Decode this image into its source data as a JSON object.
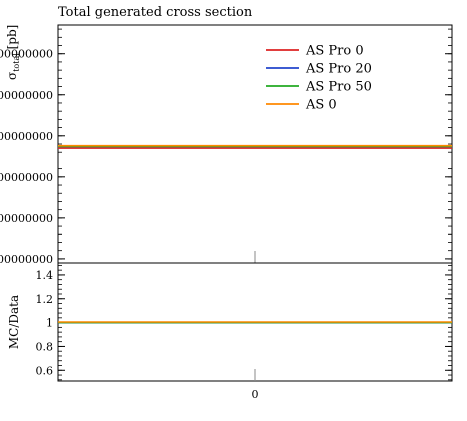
{
  "chart_data": {
    "type": "line",
    "title": "Total generated cross section",
    "upper": {
      "ylabel_main": "σ",
      "ylabel_sub": "total",
      "ylabel_unit": " [pb]",
      "yticks": [
        {
          "value": 0.0,
          "label": "000000000"
        },
        {
          "value": 1.0,
          "label": "000000000"
        },
        {
          "value": 2.0,
          "label": "000000000"
        },
        {
          "value": 3.0,
          "label": "000000000"
        },
        {
          "value": 4.0,
          "label": "000000000"
        },
        {
          "value": 5.0,
          "label": "000000000"
        }
      ],
      "ylim": [
        -0.1,
        5.7
      ],
      "reference_tick_x": 0,
      "series": [
        {
          "name": "AS Pro 0",
          "color": "#dd2222",
          "y": 2.7
        },
        {
          "name": "AS Pro 20",
          "color": "#2244cc",
          "y": 2.74
        },
        {
          "name": "AS Pro 50",
          "color": "#22aa22",
          "y": 2.74
        },
        {
          "name": "AS 0",
          "color": "#ff8800",
          "y": 2.76
        }
      ]
    },
    "lower": {
      "ylabel": "MC/Data",
      "yticks": [
        {
          "value": 0.6,
          "label": "0.6"
        },
        {
          "value": 0.8,
          "label": "0.8"
        },
        {
          "value": 1.0,
          "label": "1"
        },
        {
          "value": 1.2,
          "label": "1.2"
        },
        {
          "value": 1.4,
          "label": "1.4"
        }
      ],
      "ylim": [
        0.51,
        1.5
      ],
      "reference_tick_x": 0,
      "series": [
        {
          "name": "AS Pro 0",
          "color": "#dd2222",
          "y": 1.0
        },
        {
          "name": "AS Pro 20",
          "color": "#2244cc",
          "y": 1.0
        },
        {
          "name": "AS Pro 50",
          "color": "#22aa22",
          "y": 1.0
        },
        {
          "name": "AS 0",
          "color": "#ff8800",
          "y": 1.005
        }
      ]
    },
    "xticks": [
      {
        "value": 0,
        "label": "0"
      }
    ],
    "xlim": [
      -0.5,
      0.5
    ],
    "legend_position": "top-right",
    "legend": [
      "AS Pro 0",
      "AS Pro 20",
      "AS Pro 50",
      "AS 0"
    ]
  }
}
